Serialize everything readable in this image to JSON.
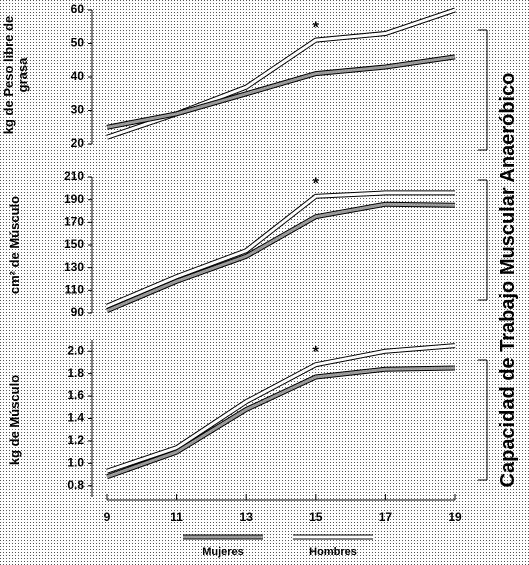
{
  "figure": {
    "side_label": "Capacidad de Trabajo Muscular Anaeróbico"
  },
  "chart_data": [
    {
      "type": "line",
      "y_label": "kg de Peso libre de grasa",
      "x": [
        9,
        11,
        13,
        15,
        17,
        19
      ],
      "xlim": [
        9,
        19
      ],
      "ylim": [
        20,
        60
      ],
      "yticks": [
        20,
        30,
        40,
        50,
        60
      ],
      "series": [
        {
          "color": "#ffffff",
          "values": [
            22,
            29,
            37,
            51,
            53,
            60
          ]
        },
        {
          "color": "#9a9a9a",
          "values": [
            25,
            29,
            35,
            41,
            43,
            46
          ]
        }
      ],
      "annotations": [
        {
          "text": "*",
          "x": 15
        }
      ]
    },
    {
      "type": "line",
      "y_label": "cm² de Músculo",
      "x": [
        9,
        11,
        13,
        15,
        17,
        19
      ],
      "xlim": [
        9,
        19
      ],
      "ylim": [
        90,
        210
      ],
      "yticks": [
        90,
        110,
        130,
        150,
        170,
        190,
        210
      ],
      "series": [
        {
          "color": "#ffffff",
          "values": [
            96,
            122,
            145,
            193,
            196,
            196
          ]
        },
        {
          "color": "#9a9a9a",
          "values": [
            92,
            118,
            140,
            175,
            186,
            185
          ]
        }
      ],
      "annotations": [
        {
          "text": "*",
          "x": 15
        }
      ]
    },
    {
      "type": "line",
      "y_label": "kg de Músculo",
      "x": [
        9,
        11,
        13,
        15,
        17,
        19
      ],
      "xlim": [
        9,
        19
      ],
      "xticks": [
        9,
        11,
        13,
        15,
        17,
        19
      ],
      "ylim": [
        0.7,
        2.1
      ],
      "yticks": [
        0.8,
        {
          "value": 1,
          "label": "1.0"
        },
        1.2,
        1.4,
        1.6,
        1.8,
        {
          "value": 2,
          "label": "2.0"
        }
      ],
      "series": [
        {
          "name": "Hombres",
          "color": "#ffffff",
          "values": [
            0.93,
            1.14,
            1.55,
            1.88,
            2.0,
            2.05
          ]
        },
        {
          "name": "Mujeres",
          "color": "#9a9a9a",
          "values": [
            0.88,
            1.1,
            1.48,
            1.77,
            1.84,
            1.85
          ]
        }
      ],
      "annotations": [
        {
          "text": "*",
          "x": 15
        }
      ]
    }
  ]
}
